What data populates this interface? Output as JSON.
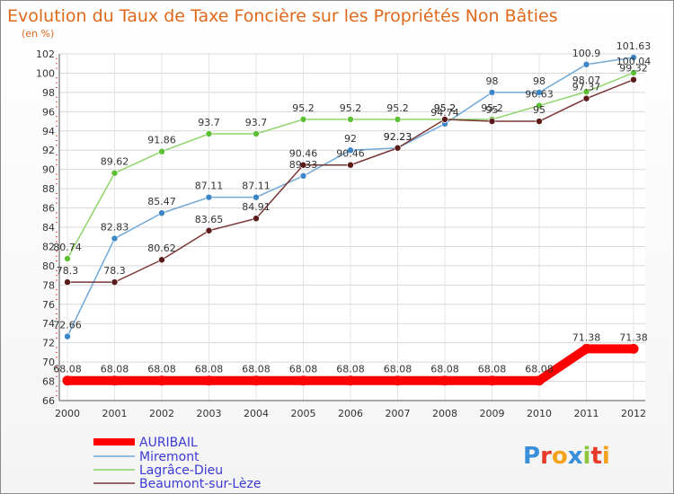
{
  "chart_data": {
    "type": "line",
    "title": "Evolution du Taux de Taxe Foncière sur les Propriétés Non Bâties",
    "subtitle": "(en %)",
    "categories": [
      "2000",
      "2001",
      "2002",
      "2003",
      "2004",
      "2005",
      "2006",
      "2007",
      "2008",
      "2009",
      "2010",
      "2011",
      "2012"
    ],
    "ylim": [
      66,
      102
    ],
    "yticks": [
      66,
      68,
      70,
      72,
      74,
      76,
      78,
      80,
      82,
      84,
      86,
      88,
      90,
      92,
      94,
      96,
      98,
      100,
      102
    ],
    "grid": true,
    "legend_position": "bottom-left",
    "series": [
      {
        "name": "AURIBAIL",
        "color": "#ff0000",
        "values": [
          68.08,
          68.08,
          68.08,
          68.08,
          68.08,
          68.08,
          68.08,
          68.08,
          68.08,
          68.08,
          68.08,
          71.38,
          71.38
        ],
        "labels": [
          "68.08",
          "68.08",
          "68.08",
          "68.08",
          "68.08",
          "68.08",
          "68.08",
          "68.08",
          "68.08",
          "68.08",
          "68.08",
          "71.38",
          "71.38"
        ]
      },
      {
        "name": "Miremont",
        "color": "#6fa8d8",
        "marker": "#3c86c8",
        "values": [
          72.66,
          82.83,
          85.47,
          87.11,
          87.11,
          89.33,
          92.0,
          92.23,
          94.74,
          98.0,
          98.0,
          100.9,
          101.63
        ],
        "labels": [
          "72.66",
          "82.83",
          "85.47",
          "87.11",
          "87.11",
          "89.33",
          "92",
          "92.23",
          "94.74",
          "98",
          "98",
          "100.9",
          "101.63"
        ]
      },
      {
        "name": "Lagrâce-Dieu",
        "color": "#8fd46a",
        "marker": "#5cbf34",
        "values": [
          80.74,
          89.62,
          91.86,
          93.7,
          93.7,
          95.2,
          95.2,
          95.2,
          95.2,
          95.2,
          96.63,
          98.07,
          100.04
        ],
        "labels": [
          "80.74",
          "89.62",
          "91.86",
          "93.7",
          "93.7",
          "95.2",
          "95.2",
          "95.2",
          "95.2",
          "95.2",
          "96.63",
          "98.07",
          "100.04"
        ]
      },
      {
        "name": "Beaumont-sur-Lèze",
        "color": "#7a3535",
        "marker": "#5a1a1a",
        "values": [
          78.3,
          78.3,
          80.62,
          83.65,
          84.91,
          90.46,
          90.46,
          92.23,
          95.2,
          95.0,
          95.0,
          97.37,
          99.32
        ],
        "labels": [
          "78.3",
          "78.3",
          "80.62",
          "83.65",
          "84.91",
          "90.46",
          "90.46",
          "92.23",
          "95.2",
          "95",
          "95",
          "97.37",
          "99.32"
        ]
      }
    ]
  },
  "logo": {
    "letters": [
      "P",
      "r",
      "o",
      "x",
      "i",
      "t",
      "i"
    ],
    "colors": [
      "#3a8fd8",
      "#e83a2a",
      "#f2a21c",
      "#3a8fd8",
      "#8cc63f",
      "#e83a2a",
      "#f2a21c"
    ]
  }
}
